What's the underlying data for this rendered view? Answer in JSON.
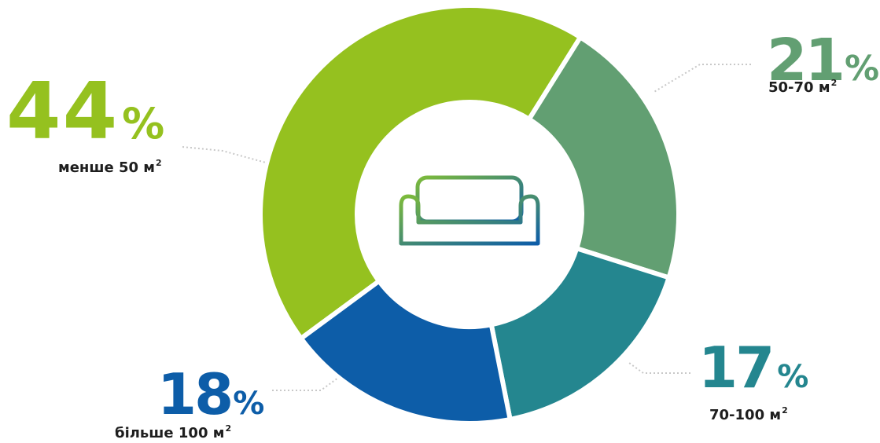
{
  "chart_data": {
    "type": "pie",
    "donut": true,
    "slices": [
      {
        "value": 44,
        "percent_label": "44",
        "category": "менше 50 м",
        "unit_sup": "2",
        "color": "#95c11f"
      },
      {
        "value": 21,
        "percent_label": "21",
        "category": "50-70 м",
        "unit_sup": "2",
        "color": "#629f72"
      },
      {
        "value": 17,
        "percent_label": "17",
        "category": "70-100 м",
        "unit_sup": "2",
        "color": "#24868f"
      },
      {
        "value": 18,
        "percent_label": "18",
        "category": "більше 100 м",
        "unit_sup": "2",
        "color": "#0d5da8"
      }
    ],
    "percent_symbol": "%",
    "center_icon": "sofa-icon",
    "icon_gradient": [
      "#7dbb3a",
      "#0d5da8"
    ],
    "leader_line_color": "#c8c8c8"
  }
}
